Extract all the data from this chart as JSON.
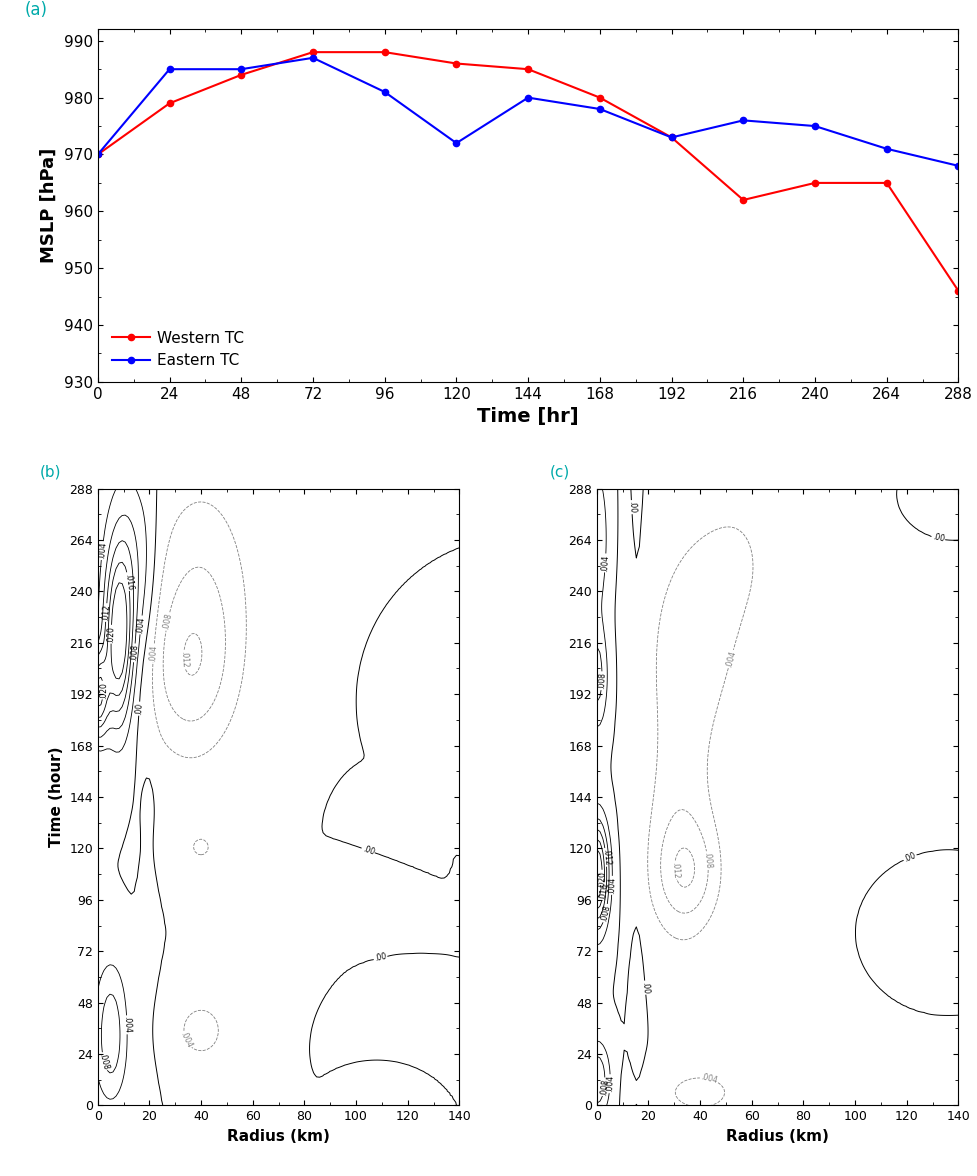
{
  "time_hr": [
    0,
    24,
    48,
    72,
    96,
    120,
    144,
    168,
    192,
    216,
    240,
    264,
    288
  ],
  "western_tc": [
    970,
    979,
    984,
    988,
    988,
    986,
    985,
    980,
    973,
    962,
    965,
    965,
    946
  ],
  "eastern_tc": [
    970,
    985,
    985,
    987,
    981,
    972,
    980,
    978,
    973,
    976,
    975,
    971,
    968
  ],
  "western_color": "#ff0000",
  "eastern_color": "#0000ff",
  "ylabel": "MSLP [hPa]",
  "xlabel": "Time [hr]",
  "ylim": [
    930,
    992
  ],
  "yticks": [
    930,
    940,
    950,
    960,
    970,
    980,
    990
  ],
  "xticks": [
    0,
    24,
    48,
    72,
    96,
    120,
    144,
    168,
    192,
    216,
    240,
    264,
    288
  ],
  "panel_a_label": "(a)",
  "panel_b_label": "(b)",
  "panel_c_label": "(c)",
  "legend_western": "Western TC",
  "legend_eastern": "Eastern TC",
  "radius_label": "Radius (km)",
  "time_hour_label": "Time (hour)",
  "radius_ticks": [
    0,
    20,
    40,
    60,
    80,
    100,
    120,
    140
  ],
  "time_ticks": [
    0,
    24,
    48,
    72,
    96,
    120,
    144,
    168,
    192,
    216,
    240,
    264,
    288
  ]
}
